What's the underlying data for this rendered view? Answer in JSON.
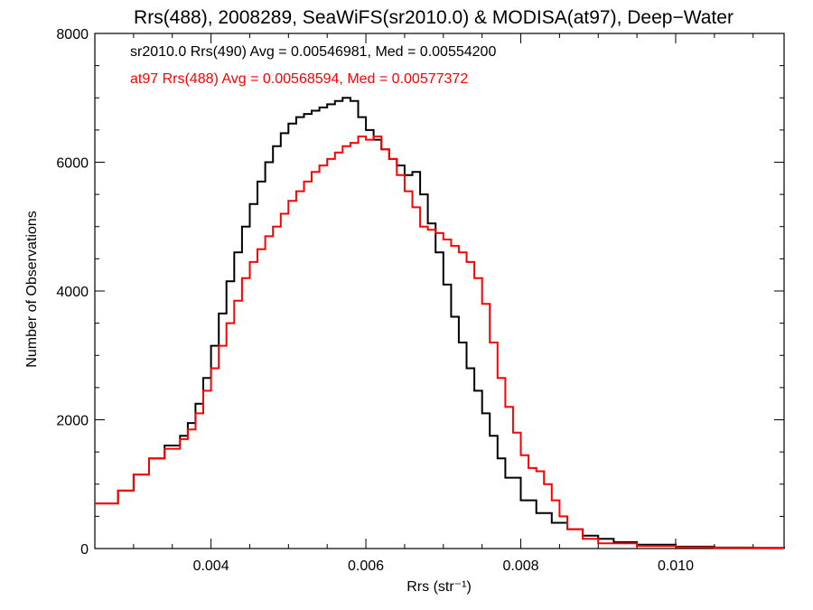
{
  "chart_data": {
    "type": "line",
    "title": "Rrs(488), 2008289, SeaWiFS(sr2010.0) & MODISA(at97), Deep−Water",
    "xlabel": "Rrs (str⁻¹)",
    "ylabel": "Number of Observations",
    "xlim": [
      0.0025,
      0.0114
    ],
    "ylim": [
      0,
      8000
    ],
    "x_ticks": [
      0.004,
      0.006,
      0.008,
      0.01
    ],
    "x_tick_labels": [
      "0.004",
      "0.006",
      "0.008",
      "0.010"
    ],
    "y_ticks": [
      0,
      2000,
      4000,
      6000,
      8000
    ],
    "y_tick_labels": [
      "0",
      "2000",
      "4000",
      "6000",
      "8000"
    ],
    "legend_placement": "top-left",
    "grid": false,
    "series": [
      {
        "name": "sr2010.0 Rrs(490) Avg = 0.00546981, Med = 0.00554200",
        "color": "#000000",
        "x": [
          0.0025,
          0.0028,
          0.003,
          0.0032,
          0.0034,
          0.0036,
          0.0037,
          0.0038,
          0.0039,
          0.004,
          0.0041,
          0.0042,
          0.0043,
          0.0044,
          0.0045,
          0.0046,
          0.0047,
          0.0048,
          0.0049,
          0.005,
          0.0051,
          0.0052,
          0.0053,
          0.0054,
          0.0055,
          0.0056,
          0.0057,
          0.0058,
          0.0059,
          0.006,
          0.0061,
          0.0062,
          0.0063,
          0.0064,
          0.0065,
          0.0066,
          0.0067,
          0.0068,
          0.0069,
          0.007,
          0.0071,
          0.0072,
          0.0073,
          0.0074,
          0.0075,
          0.0076,
          0.0077,
          0.0078,
          0.008,
          0.0082,
          0.0084,
          0.0086,
          0.0088,
          0.009,
          0.0092,
          0.0095,
          0.01,
          0.0105,
          0.011,
          0.0114
        ],
        "y": [
          700,
          900,
          1150,
          1400,
          1600,
          1750,
          1950,
          2250,
          2650,
          3150,
          3650,
          4150,
          4600,
          5000,
          5350,
          5700,
          6000,
          6250,
          6450,
          6600,
          6700,
          6750,
          6800,
          6850,
          6900,
          6950,
          7000,
          6950,
          6700,
          6500,
          6350,
          6200,
          6050,
          5950,
          5800,
          5850,
          5500,
          5050,
          4600,
          4100,
          3600,
          3200,
          2800,
          2450,
          2100,
          1750,
          1400,
          1100,
          750,
          550,
          400,
          300,
          200,
          150,
          100,
          60,
          30,
          15,
          10,
          5
        ]
      },
      {
        "name": "at97 Rrs(488) Avg = 0.00568594, Med = 0.00577372",
        "color": "#ff0000",
        "x": [
          0.0025,
          0.0028,
          0.003,
          0.0032,
          0.0034,
          0.0036,
          0.0037,
          0.0038,
          0.0039,
          0.004,
          0.0041,
          0.0042,
          0.0043,
          0.0044,
          0.0045,
          0.0046,
          0.0047,
          0.0048,
          0.0049,
          0.005,
          0.0051,
          0.0052,
          0.0053,
          0.0054,
          0.0055,
          0.0056,
          0.0057,
          0.0058,
          0.0059,
          0.006,
          0.0061,
          0.0062,
          0.0063,
          0.0064,
          0.0065,
          0.0066,
          0.0067,
          0.0068,
          0.0069,
          0.007,
          0.0071,
          0.0072,
          0.0073,
          0.0074,
          0.0075,
          0.0076,
          0.0077,
          0.0078,
          0.0079,
          0.008,
          0.0081,
          0.0082,
          0.0083,
          0.0084,
          0.0085,
          0.0086,
          0.0088,
          0.009,
          0.0095,
          0.01,
          0.0105,
          0.011,
          0.0114
        ],
        "y": [
          700,
          900,
          1150,
          1400,
          1550,
          1700,
          1850,
          2100,
          2450,
          2800,
          3150,
          3500,
          3850,
          4200,
          4450,
          4650,
          4850,
          5000,
          5200,
          5400,
          5550,
          5700,
          5850,
          5950,
          6050,
          6150,
          6250,
          6300,
          6400,
          6350,
          6400,
          6200,
          6050,
          5800,
          5550,
          5300,
          5000,
          4950,
          4900,
          4800,
          4700,
          4600,
          4450,
          4200,
          3800,
          3200,
          2650,
          2200,
          1800,
          1450,
          1250,
          1200,
          1000,
          750,
          500,
          300,
          150,
          80,
          40,
          20,
          10,
          5,
          5
        ]
      }
    ]
  }
}
